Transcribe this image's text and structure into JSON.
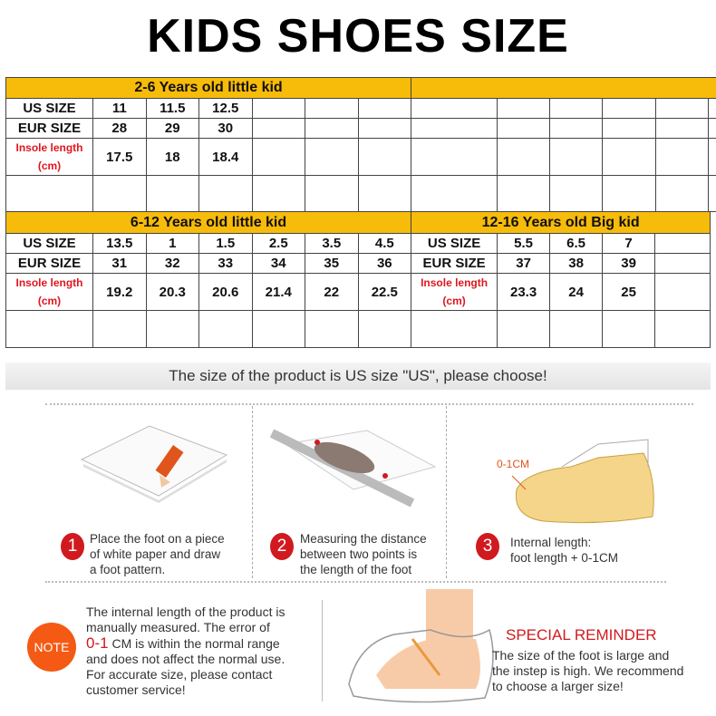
{
  "title": "KIDS SHOES SIZE",
  "table1": {
    "left": {
      "header": "2-6 Years old little kid",
      "us_label": "US SIZE",
      "eur_label": "EUR SIZE",
      "insole_label": "Insole length",
      "insole_unit": "(cm)",
      "us": [
        "11",
        "11.5",
        "12.5",
        "",
        "",
        ""
      ],
      "eur": [
        "28",
        "29",
        "30",
        "",
        "",
        ""
      ],
      "insole": [
        "17.5",
        "18",
        "18.4",
        "",
        "",
        ""
      ]
    },
    "right": {
      "header": ""
    }
  },
  "table2": {
    "left": {
      "header": "6-12 Years old little kid",
      "us_label": "US SIZE",
      "eur_label": "EUR SIZE",
      "insole_label": "Insole length",
      "insole_unit": "(cm)",
      "us": [
        "13.5",
        "1",
        "1.5",
        "2.5",
        "3.5",
        "4.5"
      ],
      "eur": [
        "31",
        "32",
        "33",
        "34",
        "35",
        "36"
      ],
      "insole": [
        "19.2",
        "20.3",
        "20.6",
        "21.4",
        "22",
        "22.5"
      ]
    },
    "right": {
      "header": "12-16 Years old Big kid",
      "us_label": "US SIZE",
      "eur_label": "EUR SIZE",
      "insole_label": "Insole length",
      "insole_unit": "(cm)",
      "us": [
        "5.5",
        "6.5",
        "7",
        ""
      ],
      "eur": [
        "37",
        "38",
        "39",
        ""
      ],
      "insole": [
        "23.3",
        "24",
        "25",
        ""
      ]
    }
  },
  "banner": "The size of the product is US size \"US\", please choose!",
  "steps": [
    {
      "num": "1",
      "lines": [
        "Place the foot on a piece",
        "of white paper and draw",
        "a foot pattern."
      ]
    },
    {
      "num": "2",
      "lines": [
        "Measuring the distance",
        "between two points is",
        "the length of the foot"
      ]
    },
    {
      "num": "3",
      "lines": [
        "Internal length:",
        "foot length + 0-1CM"
      ]
    }
  ],
  "shoe_label": "0-1CM",
  "note": {
    "badge": "NOTE",
    "line1": "The internal length of the product is",
    "line2": "manually measured. The error of",
    "highlight": "0-1",
    "line3": " CM is within the normal range",
    "line4": "and does not affect the normal use.",
    "line5": "For accurate size, please contact",
    "line6": "customer service!"
  },
  "reminder": {
    "title": "SPECIAL REMINDER",
    "lines": [
      "The size of the foot is large and",
      "the instep is high. We recommend",
      "to choose a larger size!"
    ]
  },
  "colors": {
    "header": "#f7bb0a",
    "red": "#d01a1f",
    "note": "#f45a14"
  }
}
